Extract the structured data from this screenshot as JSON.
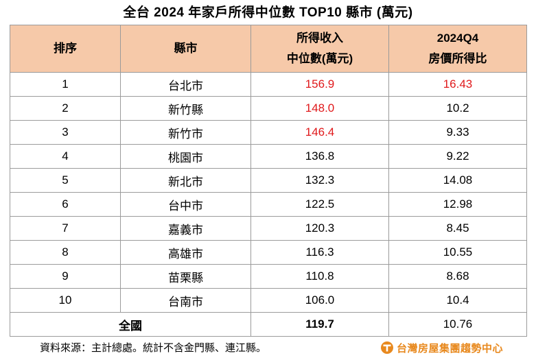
{
  "title": "全台 2024 年家戶所得中位數 TOP10 縣市 (萬元)",
  "table": {
    "headers": {
      "rank": "排序",
      "county": "縣市",
      "income_line1": "所得收入",
      "income_line2": "中位數(萬元)",
      "ratio_line1": "2024Q4",
      "ratio_line2": "房價所得比"
    },
    "rows": [
      {
        "rank": "1",
        "county": "台北市",
        "income": "156.9",
        "ratio": "16.43"
      },
      {
        "rank": "2",
        "county": "新竹縣",
        "income": "148.0",
        "ratio": "10.2"
      },
      {
        "rank": "3",
        "county": "新竹市",
        "income": "146.4",
        "ratio": "9.33"
      },
      {
        "rank": "4",
        "county": "桃園市",
        "income": "136.8",
        "ratio": "9.22"
      },
      {
        "rank": "5",
        "county": "新北市",
        "income": "132.3",
        "ratio": "14.08"
      },
      {
        "rank": "6",
        "county": "台中市",
        "income": "122.5",
        "ratio": "12.98"
      },
      {
        "rank": "7",
        "county": "嘉義市",
        "income": "120.3",
        "ratio": "8.45"
      },
      {
        "rank": "8",
        "county": "高雄市",
        "income": "116.3",
        "ratio": "10.55"
      },
      {
        "rank": "9",
        "county": "苗栗縣",
        "income": "110.8",
        "ratio": "8.68"
      },
      {
        "rank": "10",
        "county": "台南市",
        "income": "106.0",
        "ratio": "10.4"
      }
    ],
    "total": {
      "label": "全國",
      "income": "119.7",
      "ratio": "10.76"
    }
  },
  "colors": {
    "header_bg": "#f6c9a9",
    "highlight": "#e0191b",
    "brand": "#e8891e"
  },
  "footer": {
    "source": "資料來源：主計總處。統計不含金門縣、連江縣。"
  },
  "brand": {
    "name": "台灣房屋集團趨勢中心",
    "icon": "brand-logo-icon"
  }
}
